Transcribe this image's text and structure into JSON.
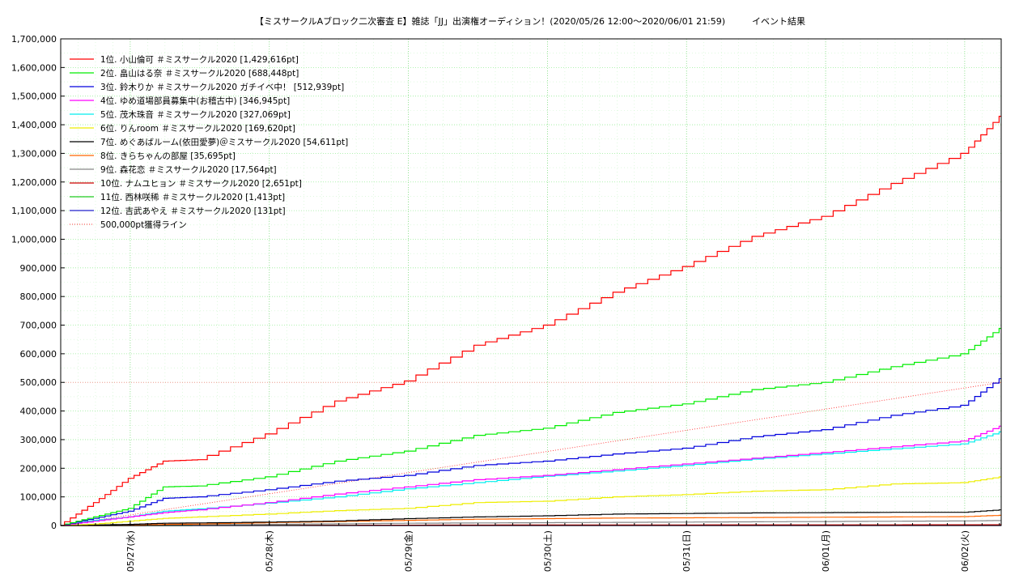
{
  "chart_data": {
    "type": "line",
    "title": "【ミスサークルAブロック二次審査 E】雑誌「JJ」出演権オーディション！(2020/05/26 12:00〜2020/06/01 21:59)　　　イベント結果",
    "xlabel": "",
    "ylabel": "",
    "ylim": [
      0,
      1700000
    ],
    "xlim": [
      "05/26 12:00",
      "06/02 00:20"
    ],
    "grid": true,
    "legend_position": "top-left",
    "x_ticks": [
      "05/27(水)",
      "05/28(木)",
      "05/29(金)",
      "05/30(土)",
      "05/31(日)",
      "06/01(月)",
      "06/02(火)"
    ],
    "y_ticks": [
      0,
      100000,
      200000,
      300000,
      400000,
      500000,
      600000,
      700000,
      800000,
      900000,
      1000000,
      1100000,
      1200000,
      1300000,
      1400000,
      1500000,
      1600000,
      1700000
    ],
    "y_tick_labels": [
      "0",
      "100,000",
      "200,000",
      "300,000",
      "400,000",
      "500,000",
      "600,000",
      "700,000",
      "800,000",
      "900,000",
      "1,000,000",
      "1,100,000",
      "1,200,000",
      "1,300,000",
      "1,400,000",
      "1,500,000",
      "1,600,000",
      "1,700,000"
    ],
    "x_hours": [
      0,
      6,
      12,
      18,
      24,
      36,
      48,
      60,
      72,
      84,
      96,
      108,
      120,
      132,
      144,
      156,
      162.3
    ],
    "series": [
      {
        "name": "1位. 小山倫可 ＃ミスサークル2020 [1,429,616pt]",
        "color": "#ff0000",
        "values": [
          0,
          80000,
          165000,
          225000,
          230000,
          320000,
          435000,
          505000,
          630000,
          700000,
          815000,
          905000,
          1010000,
          1080000,
          1195000,
          1300000,
          1429616
        ]
      },
      {
        "name": "2位. 畠山はる奈 ＃ミスサークル2020 [688,448pt]",
        "color": "#00ee00",
        "values": [
          0,
          30000,
          60000,
          135000,
          138000,
          170000,
          225000,
          260000,
          315000,
          340000,
          395000,
          425000,
          475000,
          500000,
          555000,
          600000,
          688448
        ]
      },
      {
        "name": "3位. 鈴木りか ＃ミスサークル2020 ガチイベ中！ [512,939pt]",
        "color": "#0000dd",
        "values": [
          0,
          25000,
          50000,
          95000,
          100000,
          125000,
          155000,
          175000,
          210000,
          225000,
          250000,
          270000,
          310000,
          335000,
          385000,
          420000,
          512939
        ]
      },
      {
        "name": "4位. ゆめ道場部員募集中(お稽古中) [346,945pt]",
        "color": "#ff00ff",
        "values": [
          0,
          15000,
          30000,
          45000,
          55000,
          80000,
          110000,
          135000,
          160000,
          175000,
          195000,
          215000,
          235000,
          255000,
          275000,
          295000,
          346945
        ]
      },
      {
        "name": "5位. 茂木珠音 ＃ミスサークル2020 [327,069pt]",
        "color": "#00eeee",
        "values": [
          0,
          18000,
          30000,
          50000,
          58000,
          78000,
          100000,
          128000,
          150000,
          172000,
          190000,
          210000,
          232000,
          250000,
          268000,
          285000,
          327069
        ]
      },
      {
        "name": "6位. りんroom ＃ミスサークル2020 [169,620pt]",
        "color": "#eeee00",
        "values": [
          0,
          5000,
          15000,
          25000,
          30000,
          40000,
          52000,
          60000,
          80000,
          85000,
          100000,
          108000,
          120000,
          125000,
          145000,
          150000,
          169620
        ]
      },
      {
        "name": "7位. めぐあばルーム(依田愛夢)＠ミスサークル2020 [54,611pt]",
        "color": "#000000",
        "values": [
          0,
          2000,
          4000,
          8000,
          9000,
          12000,
          16000,
          24000,
          30000,
          34000,
          40000,
          42000,
          44000,
          45000,
          46000,
          46000,
          54611
        ]
      },
      {
        "name": "8位. きらちゃんの部屋 [35,695pt]",
        "color": "#ff6600",
        "values": [
          0,
          0,
          1000,
          4000,
          5000,
          10000,
          14000,
          18000,
          22000,
          24000,
          26000,
          27000,
          28000,
          29000,
          30000,
          31000,
          35695
        ]
      },
      {
        "name": "9位. 森花恋 ＃ミスサークル2020 [17,564pt]",
        "color": "#888888",
        "values": [
          0,
          0,
          500,
          1000,
          2000,
          4000,
          6000,
          8000,
          9000,
          10000,
          11000,
          12000,
          13000,
          14000,
          15000,
          16000,
          17564
        ]
      },
      {
        "name": "10位. ナムユヒョン ＃ミスサークル2020 [2,651pt]",
        "color": "#cc0000",
        "values": [
          0,
          0,
          100,
          200,
          300,
          600,
          900,
          1200,
          1500,
          1700,
          1900,
          2100,
          2200,
          2300,
          2400,
          2500,
          2651
        ]
      },
      {
        "name": "11位. 西林咲稀 ＃ミスサークル2020 [1,413pt]",
        "color": "#22cc22",
        "values": [
          0,
          0,
          50,
          100,
          150,
          300,
          450,
          600,
          750,
          900,
          1000,
          1100,
          1200,
          1250,
          1300,
          1350,
          1413
        ]
      },
      {
        "name": "12位. 吉武あやえ ＃ミスサークル2020 [131pt]",
        "color": "#2222cc",
        "values": [
          0,
          0,
          0,
          10,
          20,
          30,
          40,
          50,
          60,
          70,
          80,
          90,
          100,
          110,
          120,
          125,
          131
        ]
      }
    ],
    "reference_line": {
      "name": "500,000pt獲得ライン",
      "color": "#ff3333",
      "from_value": 0,
      "to_value": 500000
    }
  }
}
